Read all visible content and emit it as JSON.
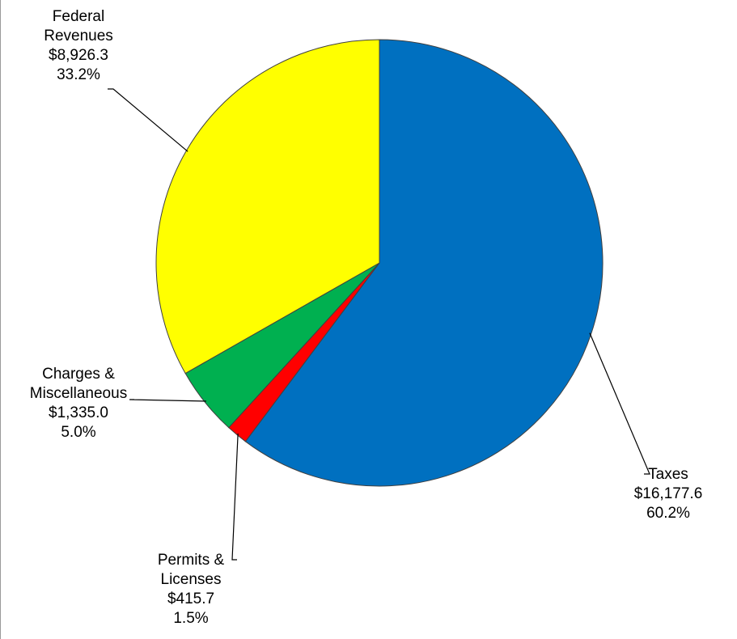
{
  "chart_data": {
    "type": "pie",
    "slices": [
      {
        "name": [
          "Taxes"
        ],
        "amount": "$16,177.6",
        "percent_label": "60.2%",
        "value": 16177.6,
        "percent": 60.2,
        "color": "#0070C0"
      },
      {
        "name": [
          "Permits &",
          "Licenses"
        ],
        "amount": "$415.7",
        "percent_label": "1.5%",
        "value": 415.7,
        "percent": 1.5,
        "color": "#FF0000"
      },
      {
        "name": [
          "Charges &",
          "Miscellaneous"
        ],
        "amount": "$1,335.0",
        "percent_label": "5.0%",
        "value": 1335.0,
        "percent": 5.0,
        "color": "#00B050"
      },
      {
        "name": [
          "Federal",
          "Revenues"
        ],
        "amount": "$8,926.3",
        "percent_label": "33.2%",
        "value": 8926.3,
        "percent": 33.2,
        "color": "#FFFF00"
      }
    ],
    "start": "12 o'clock",
    "direction": "clockwise",
    "edge_color": "#404040",
    "leader_color": "#000000"
  }
}
